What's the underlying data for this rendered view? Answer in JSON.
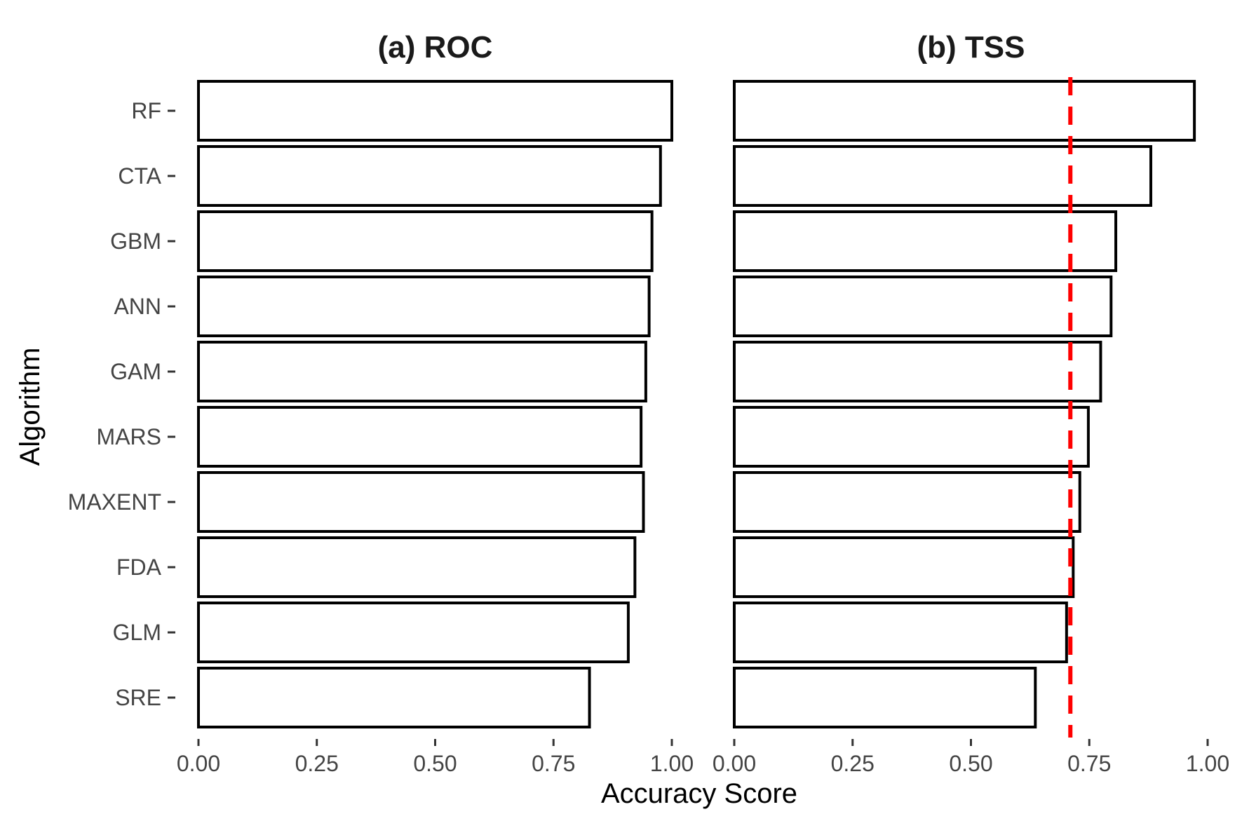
{
  "chart_data": {
    "type": "bar",
    "orientation": "horizontal",
    "ylabel": "Algorithm",
    "xlabel": "Accuracy Score",
    "xlim": [
      0,
      1
    ],
    "x_ticks": [
      "0.00",
      "0.25",
      "0.50",
      "0.75",
      "1.00"
    ],
    "categories": [
      "RF",
      "CTA",
      "GBM",
      "ANN",
      "GAM",
      "MARS",
      "MAXENT",
      "FDA",
      "GLM",
      "SRE"
    ],
    "colors": {
      "bar_fill": "#ffffff",
      "bar_outline": "#000000",
      "reference_line": "#ff0000"
    },
    "panels": [
      {
        "title": "(a) ROC",
        "values": [
          1.0,
          0.976,
          0.958,
          0.952,
          0.945,
          0.935,
          0.94,
          0.922,
          0.908,
          0.826
        ]
      },
      {
        "title": "(b) TSS",
        "values": [
          0.972,
          0.88,
          0.806,
          0.796,
          0.774,
          0.748,
          0.73,
          0.716,
          0.702,
          0.636
        ],
        "reference_line": {
          "x": 0.71,
          "style": "dashed"
        }
      }
    ]
  }
}
